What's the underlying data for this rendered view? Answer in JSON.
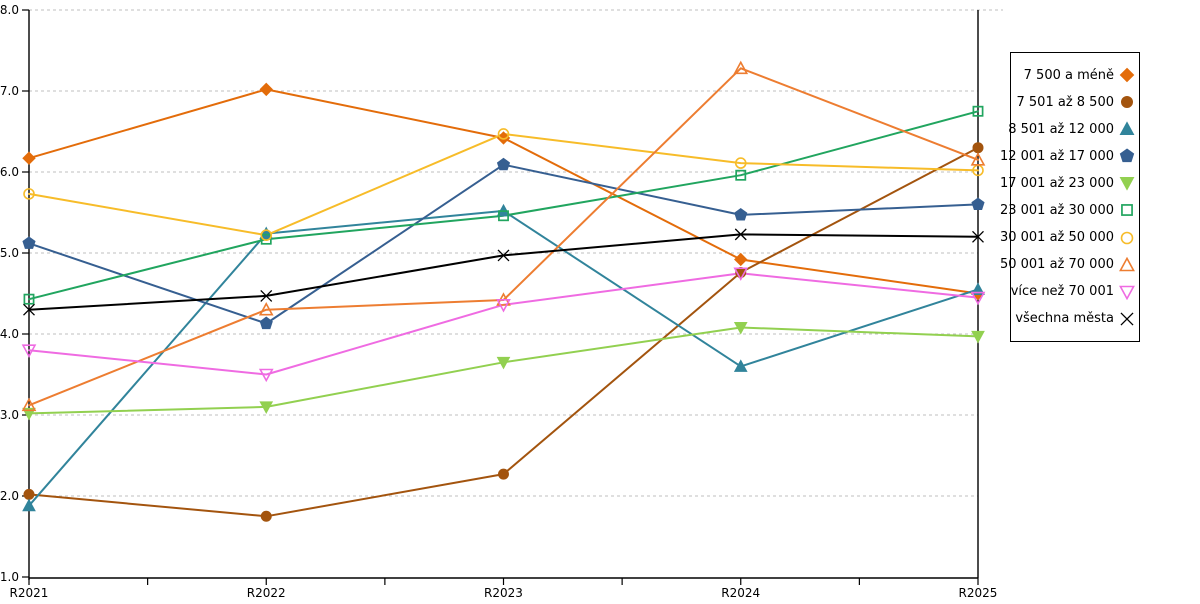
{
  "chart_data": {
    "type": "line",
    "title": "",
    "xlabel": "",
    "ylabel": "",
    "categories": [
      "R2021",
      "R2022",
      "R2023",
      "R2024",
      "R2025"
    ],
    "ylim": [
      1.0,
      8.0
    ],
    "ytick_step": 1.0,
    "ytick_labels": [
      "8.0",
      "7.0",
      "6.0",
      "5.0",
      "4.0",
      "3.0",
      "2.0",
      "1.0"
    ],
    "grid": "horizontal-dashed",
    "gridline_color": "#bfbfbf",
    "axis_color": "#000000",
    "legend_position": "right-outside",
    "series": [
      {
        "name": "7 500 a méně",
        "marker": "diamond",
        "filled": true,
        "color": "#E36C0A",
        "values": [
          6.17,
          7.02,
          6.42,
          4.92,
          4.5
        ]
      },
      {
        "name": "7 501 až 8 500",
        "marker": "circle",
        "filled": true,
        "color": "#A3540E",
        "values": [
          2.02,
          1.75,
          2.27,
          4.76,
          6.3
        ]
      },
      {
        "name": "8 501 až 12 000",
        "marker": "triangle-up",
        "filled": true,
        "color": "#31849B",
        "values": [
          1.88,
          5.24,
          5.52,
          3.6,
          4.55
        ]
      },
      {
        "name": "12 001 až 17 000",
        "marker": "pentagon",
        "filled": true,
        "color": "#365F91",
        "values": [
          5.12,
          4.13,
          6.09,
          5.47,
          5.6
        ]
      },
      {
        "name": "17 001 až 23 000",
        "marker": "triangle-down",
        "filled": true,
        "color": "#92D050",
        "values": [
          3.02,
          3.1,
          3.65,
          4.08,
          3.97
        ]
      },
      {
        "name": "23 001 až 30 000",
        "marker": "square",
        "filled": false,
        "color": "#21A55F",
        "values": [
          4.43,
          5.17,
          5.46,
          5.96,
          6.75
        ]
      },
      {
        "name": "30 001 až 50 000",
        "marker": "circle",
        "filled": false,
        "color": "#F7BC29",
        "values": [
          5.73,
          5.22,
          6.47,
          6.11,
          6.02
        ]
      },
      {
        "name": "50 001 až 70 000",
        "marker": "triangle-up",
        "filled": false,
        "color": "#ED7D31",
        "values": [
          3.12,
          4.3,
          4.42,
          7.28,
          6.15
        ]
      },
      {
        "name": "více než 70 001",
        "marker": "triangle-down",
        "filled": false,
        "color": "#EF6BE2",
        "values": [
          3.8,
          3.5,
          4.36,
          4.75,
          4.45
        ]
      },
      {
        "name": "všechna města",
        "marker": "x",
        "filled": false,
        "color": "#000000",
        "values": [
          4.3,
          4.47,
          4.97,
          5.23,
          5.2
        ]
      }
    ]
  }
}
